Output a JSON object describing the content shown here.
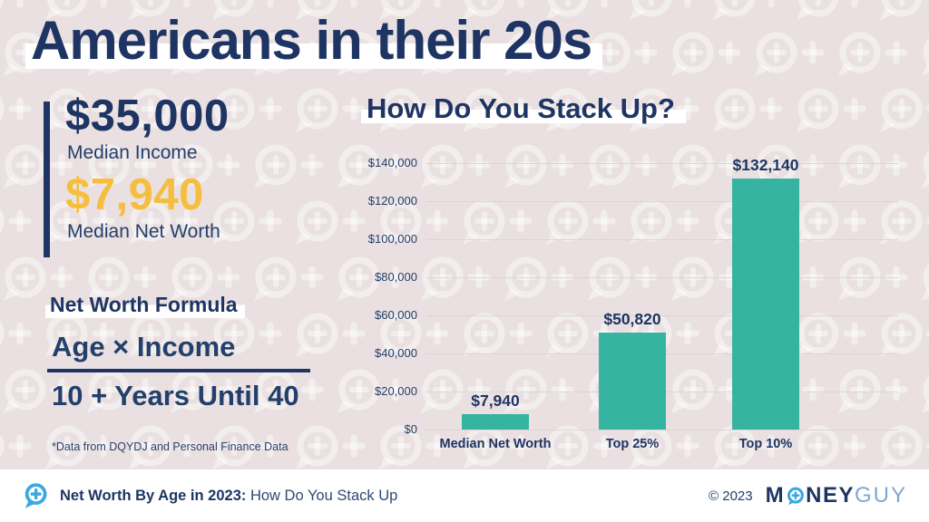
{
  "page": {
    "title": "Americans in their 20s"
  },
  "stats": {
    "income_value": "$35,000",
    "income_label": "Median Income",
    "networth_value": "$7,940",
    "networth_label": "Median Net Worth"
  },
  "formula": {
    "heading": "Net Worth Formula",
    "numerator": "Age × Income",
    "denominator": "10 + Years Until 40",
    "footnote": "*Data from DQYDJ and Personal Finance Data"
  },
  "chart": {
    "title": "How Do You Stack Up?"
  },
  "chart_data": {
    "type": "bar",
    "title": "How Do You Stack Up?",
    "categories": [
      "Median Net Worth",
      "Top 25%",
      "Top 10%"
    ],
    "values": [
      7940,
      50820,
      132140
    ],
    "value_labels": [
      "$7,940",
      "$50,820",
      "$132,140"
    ],
    "y_ticks": [
      "$140,000",
      "$120,000",
      "$100,000",
      "$80,000",
      "$60,000",
      "$40,000",
      "$20,000",
      "$0"
    ],
    "ylim": [
      0,
      140000
    ],
    "xlabel": "",
    "ylabel": "",
    "grid": true,
    "legend": "none",
    "bar_color": "#35B4A1"
  },
  "footer": {
    "title_bold": "Net Worth By Age in 2023:",
    "title_regular": "How Do You Stack Up",
    "copyright": "© 2023",
    "brand": {
      "m": "M",
      "ney": "NEY",
      "guy": "GUY"
    }
  },
  "colors": {
    "background": "#EAE0E1",
    "navy": "#1E3564",
    "gold": "#F5BE3F",
    "teal": "#35B4A1",
    "light_blue": "#3BA8E0",
    "brand_light": "#7FA9D2",
    "gridline": "#DBD4D4",
    "highlight": "#FFFFFF"
  }
}
